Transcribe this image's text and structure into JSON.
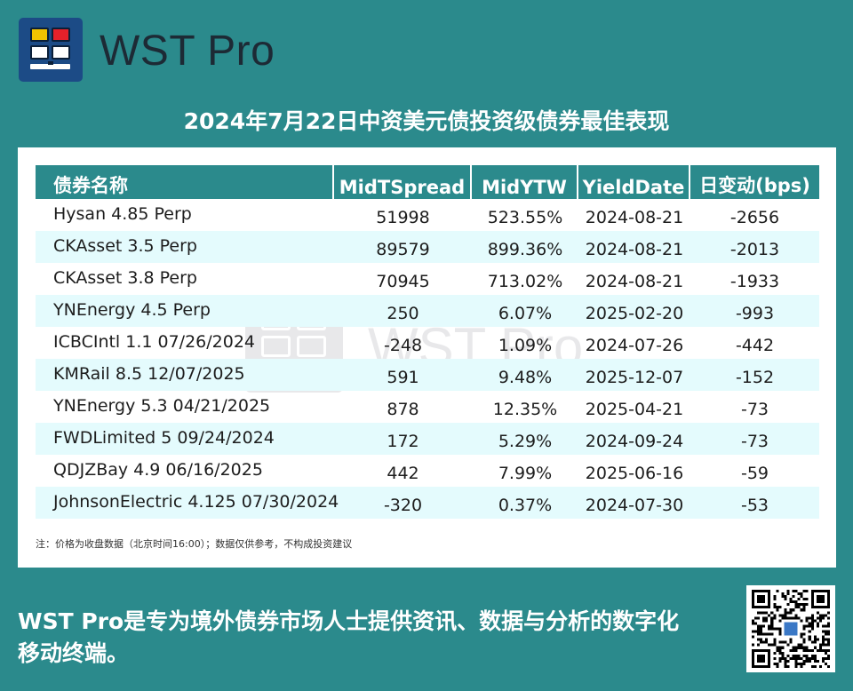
{
  "brand": {
    "name": "WST Pro",
    "logo_icon": "wst-pro-logo-icon"
  },
  "title": "2024年7月22日中资美元债投资级债券最佳表现",
  "table": {
    "headers": [
      "债券名称",
      "MidTSpread",
      "MidYTW",
      "YieldDate",
      "日变动(bps)"
    ],
    "rows": [
      [
        "Hysan 4.85 Perp",
        "51998",
        "523.55%",
        "2024-08-21",
        "-2656"
      ],
      [
        "CKAsset 3.5 Perp",
        "89579",
        "899.36%",
        "2024-08-21",
        "-2013"
      ],
      [
        "CKAsset 3.8 Perp",
        "70945",
        "713.02%",
        "2024-08-21",
        "-1933"
      ],
      [
        "YNEnergy 4.5 Perp",
        "250",
        "6.07%",
        "2025-02-20",
        "-993"
      ],
      [
        "ICBCIntl 1.1 07/26/2024",
        "-248",
        "1.09%",
        "2024-07-26",
        "-442"
      ],
      [
        "KMRail 8.5 12/07/2025",
        "591",
        "9.48%",
        "2025-12-07",
        "-152"
      ],
      [
        "YNEnergy 5.3 04/21/2025",
        "878",
        "12.35%",
        "2025-04-21",
        "-73"
      ],
      [
        "FWDLimited 5 09/24/2024",
        "172",
        "5.29%",
        "2024-09-24",
        "-73"
      ],
      [
        "QDJZBay 4.9 06/16/2025",
        "442",
        "7.99%",
        "2025-06-16",
        "-59"
      ],
      [
        "JohnsonElectric 4.125 07/30/2024",
        "-320",
        "0.37%",
        "2024-07-30",
        "-53"
      ]
    ]
  },
  "note": "注：价格为收盘数据（北京时间16:00）；数据仅供参考，不构成投资建议",
  "watermark": "WST Pro",
  "footer": "WST Pro是专为境外债券市场人士提供资讯、数据与分析的数字化移动终端。",
  "colors": {
    "background": "#2b8a8c",
    "header": "#2b8a8c",
    "row_alt": "#e4fbfd",
    "logo_bg": "#1c4b86"
  },
  "qr_icon": "qr-code-icon"
}
